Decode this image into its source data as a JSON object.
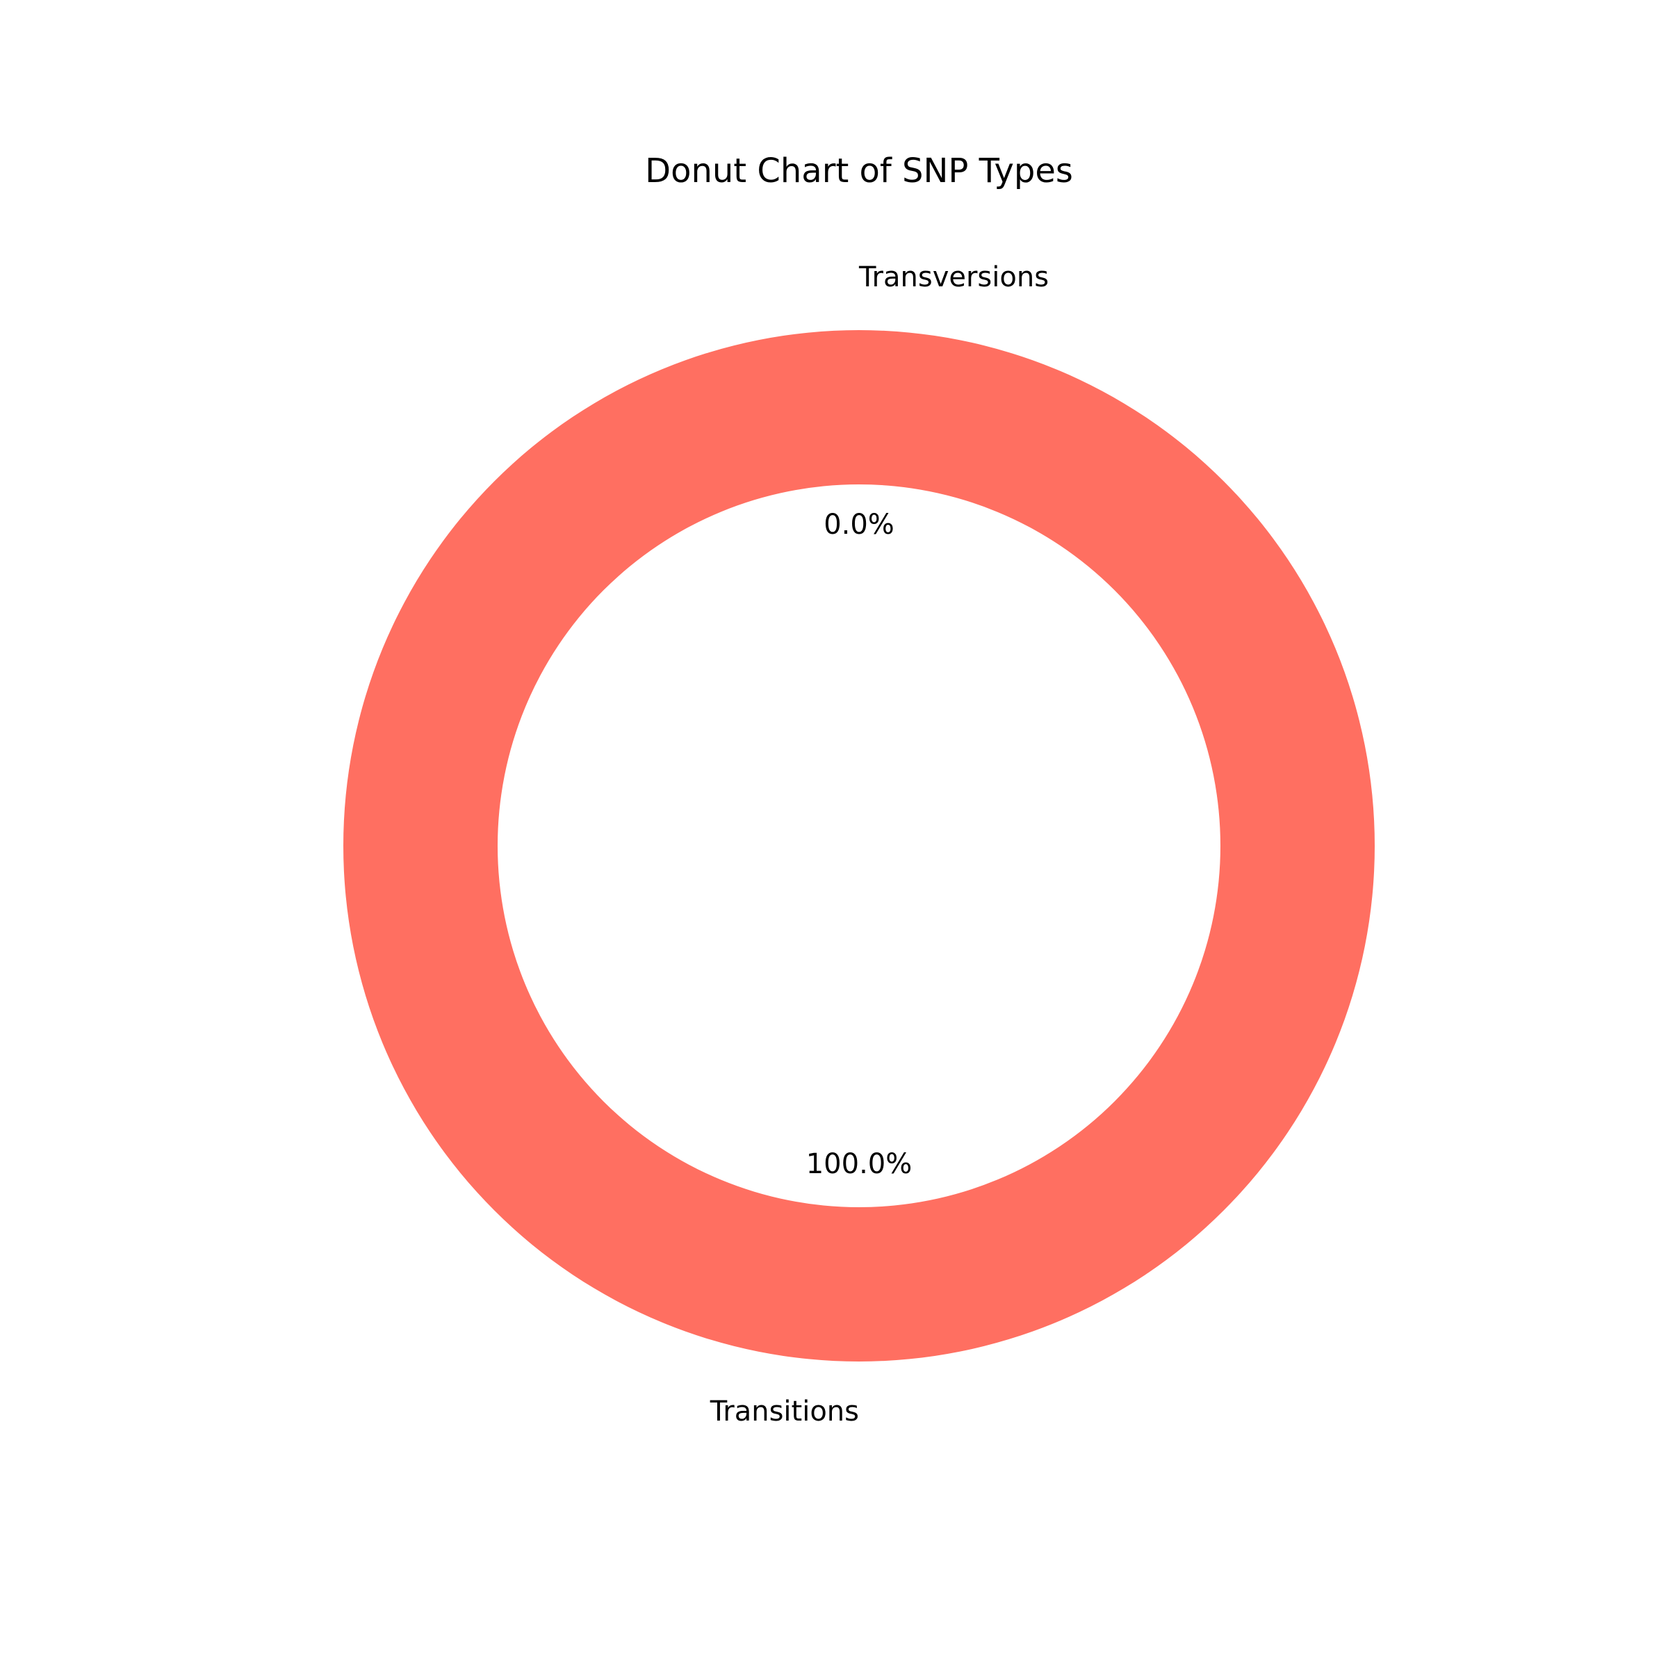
{
  "chart_data": {
    "type": "pie",
    "title": "Donut Chart of SNP Types",
    "donut": true,
    "categories": [
      "Transitions",
      "Transversions"
    ],
    "values": [
      100.0,
      0.0
    ],
    "percent_labels": [
      "100.0%",
      "0.0%"
    ],
    "colors": [
      "#ff6f61",
      "#6b5b95"
    ]
  }
}
